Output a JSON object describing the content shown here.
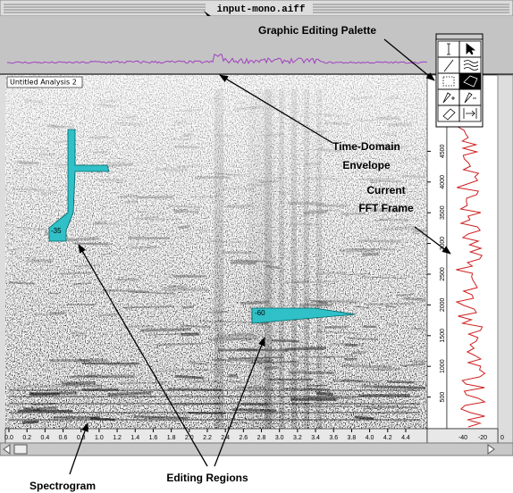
{
  "window": {
    "title": "input-mono.aiff"
  },
  "view": {
    "label": "Untitled Analysis 2"
  },
  "time_axis": {
    "ticks": [
      "0.0",
      "0.2",
      "0.4",
      "0.6",
      "0.8",
      "1.0",
      "1.2",
      "1.4",
      "1.6",
      "1.8",
      "2.0",
      "2.2",
      "2.4",
      "2.6",
      "2.8",
      "3.0",
      "3.2",
      "3.4",
      "3.6",
      "3.8",
      "4.0",
      "4.2",
      "4.4"
    ]
  },
  "frequency_axis": {
    "ticks": [
      "500",
      "1000",
      "1500",
      "2000",
      "2500",
      "3000",
      "3500",
      "4000",
      "4500"
    ]
  },
  "fft_axis": {
    "ticks": [
      "-40",
      "-20",
      "0"
    ]
  },
  "regions": [
    {
      "label": "-35"
    },
    {
      "label": "-60"
    }
  ],
  "annotations": {
    "palette": "Graphic Editing Palette",
    "envelope": [
      "Time-Domain",
      "Envelope"
    ],
    "fft_frame": [
      "Current",
      "FFT Frame"
    ],
    "editing_regions": "Editing Regions",
    "spectrogram": "Spectrogram"
  }
}
